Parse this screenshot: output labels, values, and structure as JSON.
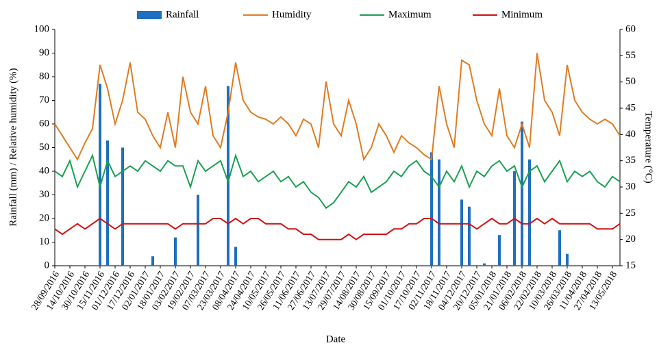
{
  "chart_data": {
    "type": "combo",
    "xlabel": "Date",
    "ylabel": "Rainfall (mm) / Relative humidity (%)",
    "y2label": "Temperature (°C)",
    "categories": [
      "28/09/2016",
      null,
      "14/10/2016",
      null,
      "30/10/2016",
      null,
      "15/11/2016",
      null,
      "01/12/2016",
      null,
      "17/12/2016",
      null,
      "02/01/2017",
      null,
      "18/01/2017",
      null,
      "03/02/2017",
      null,
      "19/02/2017",
      null,
      "07/03/2017",
      null,
      "23/03/2017",
      null,
      "08/04/2017",
      null,
      "24/04/2017",
      null,
      "10/05/2017",
      null,
      "26/05/2017",
      null,
      "11/06/2017",
      null,
      "27/06/2017",
      null,
      "13/07/2017",
      null,
      "29/07/2017",
      null,
      "14/08/2017",
      null,
      "30/08/2017",
      null,
      "15/09/2017",
      null,
      "01/10/2017",
      null,
      "17/10/2017",
      null,
      "02/11/2017",
      null,
      "18/11/2017",
      null,
      "04/12/2017",
      null,
      "20/12/2017",
      null,
      "05/01/2018",
      null,
      "21/01/2018",
      null,
      "06/02/2018",
      null,
      "22/02/2018",
      null,
      "10/03/2018",
      null,
      "26/03/2018",
      null,
      "11/04/2018",
      null,
      "27/04/2018",
      null,
      "13/05/2018",
      null
    ],
    "ylim": [
      0,
      100
    ],
    "yticks": [
      0,
      10,
      20,
      30,
      40,
      50,
      60,
      70,
      80,
      90,
      100
    ],
    "y2lim": [
      15,
      60
    ],
    "y2ticks": [
      15,
      20,
      25,
      30,
      35,
      40,
      45,
      50,
      55,
      60
    ],
    "series": [
      {
        "name": "Rainfall",
        "type": "bar",
        "color": "#1f6fc0",
        "values": [
          0,
          0,
          0,
          0,
          0,
          0,
          77,
          53,
          0,
          50,
          0,
          0,
          0,
          4,
          0,
          0,
          12,
          0,
          0,
          30,
          0,
          0,
          0,
          76,
          8,
          0,
          0,
          0,
          0,
          0,
          0,
          0,
          0,
          0,
          0,
          0,
          0,
          0,
          0,
          0,
          0,
          0,
          0,
          0,
          0,
          0,
          0,
          0,
          0,
          0,
          48,
          45,
          0,
          0,
          28,
          25,
          0,
          1,
          0,
          13,
          0,
          40,
          61,
          45,
          0,
          0,
          0,
          15,
          5,
          0,
          0,
          0,
          0,
          0,
          0,
          0
        ]
      },
      {
        "name": "Humidity",
        "type": "line",
        "color": "#e07b20",
        "values": [
          60,
          55,
          50,
          45,
          52,
          58,
          85,
          75,
          60,
          70,
          86,
          65,
          62,
          55,
          50,
          65,
          50,
          80,
          65,
          60,
          76,
          55,
          50,
          65,
          86,
          70,
          65,
          63,
          62,
          60,
          63,
          60,
          55,
          62,
          60,
          50,
          78,
          60,
          55,
          70,
          60,
          45,
          50,
          60,
          55,
          48,
          55,
          52,
          50,
          47,
          45,
          76,
          60,
          50,
          87,
          85,
          70,
          60,
          55,
          75,
          55,
          50,
          60,
          50,
          90,
          70,
          65,
          55,
          85,
          70,
          65,
          62,
          60,
          62,
          60,
          55
        ]
      },
      {
        "name": "Maximum",
        "type": "line",
        "axis": "y2",
        "color": "#1aa050",
        "values": [
          33,
          32,
          35,
          30,
          33,
          36,
          30,
          35,
          32,
          33,
          34,
          33,
          35,
          34,
          33,
          35,
          34,
          34,
          30,
          35,
          33,
          34,
          35,
          31,
          36,
          32,
          33,
          31,
          32,
          33,
          31,
          32,
          30,
          31,
          29,
          28,
          26,
          27,
          29,
          31,
          30,
          32,
          29,
          30,
          31,
          33,
          32,
          34,
          35,
          33,
          32,
          30,
          33,
          31,
          34,
          30,
          33,
          32,
          34,
          35,
          33,
          34,
          30,
          33,
          34,
          31,
          33,
          35,
          31,
          33,
          32,
          33,
          31,
          30,
          32,
          31
        ]
      },
      {
        "name": "Minimum",
        "type": "line",
        "axis": "y2",
        "color": "#d01010",
        "values": [
          22,
          21,
          22,
          23,
          22,
          23,
          24,
          23,
          22,
          23,
          23,
          23,
          23,
          23,
          23,
          23,
          22,
          23,
          23,
          23,
          23,
          24,
          24,
          23,
          24,
          23,
          24,
          24,
          23,
          23,
          23,
          22,
          22,
          21,
          21,
          20,
          20,
          20,
          20,
          21,
          20,
          21,
          21,
          21,
          21,
          22,
          22,
          23,
          23,
          24,
          24,
          23,
          23,
          23,
          23,
          23,
          22,
          23,
          24,
          23,
          23,
          24,
          23,
          23,
          24,
          23,
          24,
          23,
          23,
          23,
          23,
          23,
          22,
          22,
          22,
          23
        ]
      }
    ]
  }
}
